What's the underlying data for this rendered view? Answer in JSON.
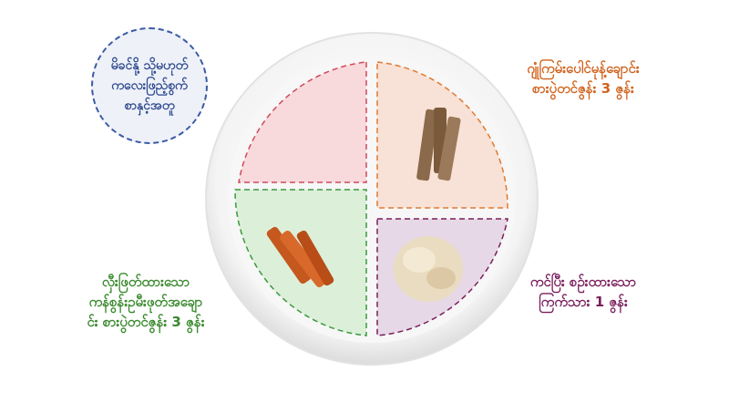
{
  "bubble": {
    "lines": [
      "မိခင်နို့ သို့မဟုတ်",
      "ကလေးဖြည့်စွက်",
      "စာနှင့်အတူ"
    ],
    "color": "#3b5ba5"
  },
  "labels": {
    "top_right": {
      "lines": [
        "ဂျုံကြမ်းပေါင်မုန့်ချောင်း",
        "စားပွဲတင်ဇွန်း 3 ဇွန်း"
      ],
      "color": "#d0641e"
    },
    "bottom_left": {
      "lines": [
        "လှီးဖြတ်ထားသော",
        "ကန်စွန်းဥမီးဖုတ်အချော",
        "င်း စားပွဲတင်ဇွန်း 3 ဇွန်း"
      ],
      "color": "#3a8a2e"
    },
    "bottom_right": {
      "lines": [
        "ကင်ပြီး စဉ်းထားသော",
        "ကြက်သား 1 ဇွန်း"
      ],
      "color": "#7a1f5c"
    }
  },
  "sections": {
    "top_left": "#f8d9dc",
    "top_right": "#f8e1d6",
    "bottom_left": "#dcefd9",
    "bottom_right": "#e6d8e6"
  }
}
